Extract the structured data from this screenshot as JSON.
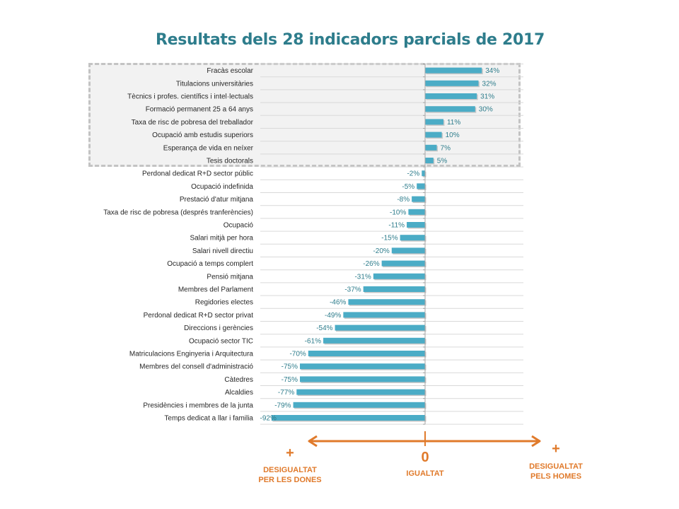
{
  "chart_data": {
    "type": "bar",
    "orientation": "horizontal",
    "title": "Resultats dels 28 indicadors parcials de 2017",
    "xlim": [
      -95,
      60
    ],
    "bar_color": "#4bacc6",
    "label_color": "#2e7d8c",
    "highlight_count": 8,
    "categories": [
      "Fracàs escolar",
      "Titulacions universitàries",
      "Tècnics i profes. científics i intel·lectuals",
      "Formació permanent 25 a 64 anys",
      "Taxa de risc de pobresa del treballador",
      "Ocupació amb estudis superiors",
      "Esperança de vida en neíxer",
      "Tesis doctorals",
      "Perdonal dedicat R+D sector públic",
      "Ocupació indefinida",
      "Prestació d'atur mitjana",
      "Taxa de risc de pobresa (després tranferències)",
      "Ocupació",
      "Salari mitjà per hora",
      "Salari nivell directiu",
      "Ocupació a temps complert",
      "Pensió mitjana",
      "Membres del Parlament",
      "Regidories electes",
      "Perdonal dedicat R+D sector privat",
      "Direccions i gerències",
      "Ocupació sector TIC",
      "Matriculacions Enginyeria i Arquitectura",
      "Membres del consell d'administració",
      "Càtedres",
      "Alcaldies",
      "Presidències i membres de la junta",
      "Temps dedicat a llar i familia"
    ],
    "values": [
      34,
      32,
      31,
      30,
      11,
      10,
      7,
      5,
      -2,
      -5,
      -8,
      -10,
      -11,
      -15,
      -20,
      -26,
      -31,
      -37,
      -46,
      -49,
      -54,
      -61,
      -70,
      -75,
      -75,
      -77,
      -79,
      -92
    ],
    "value_labels": [
      "34%",
      "32%",
      "31%",
      "30%",
      "11%",
      "10%",
      "7%",
      "5%",
      "-2%",
      "-5%",
      "-8%",
      "-10%",
      "-11%",
      "-15%",
      "-20%",
      "-26%",
      "-31%",
      "-37%",
      "-46%",
      "-49%",
      "-54%",
      "-61%",
      "-70%",
      "-75%",
      "-75%",
      "-77%",
      "-79%",
      "-92%"
    ]
  },
  "legend": {
    "color": "#e07a2b",
    "left_plus": "+",
    "left_line1": "DESIGUALTAT",
    "left_line2": "PER LES DONES",
    "center_zero": "0",
    "center_label": "IGUALTAT",
    "right_plus": "+",
    "right_line1": "DESIGUALTAT",
    "right_line2": "PELS HOMES"
  }
}
